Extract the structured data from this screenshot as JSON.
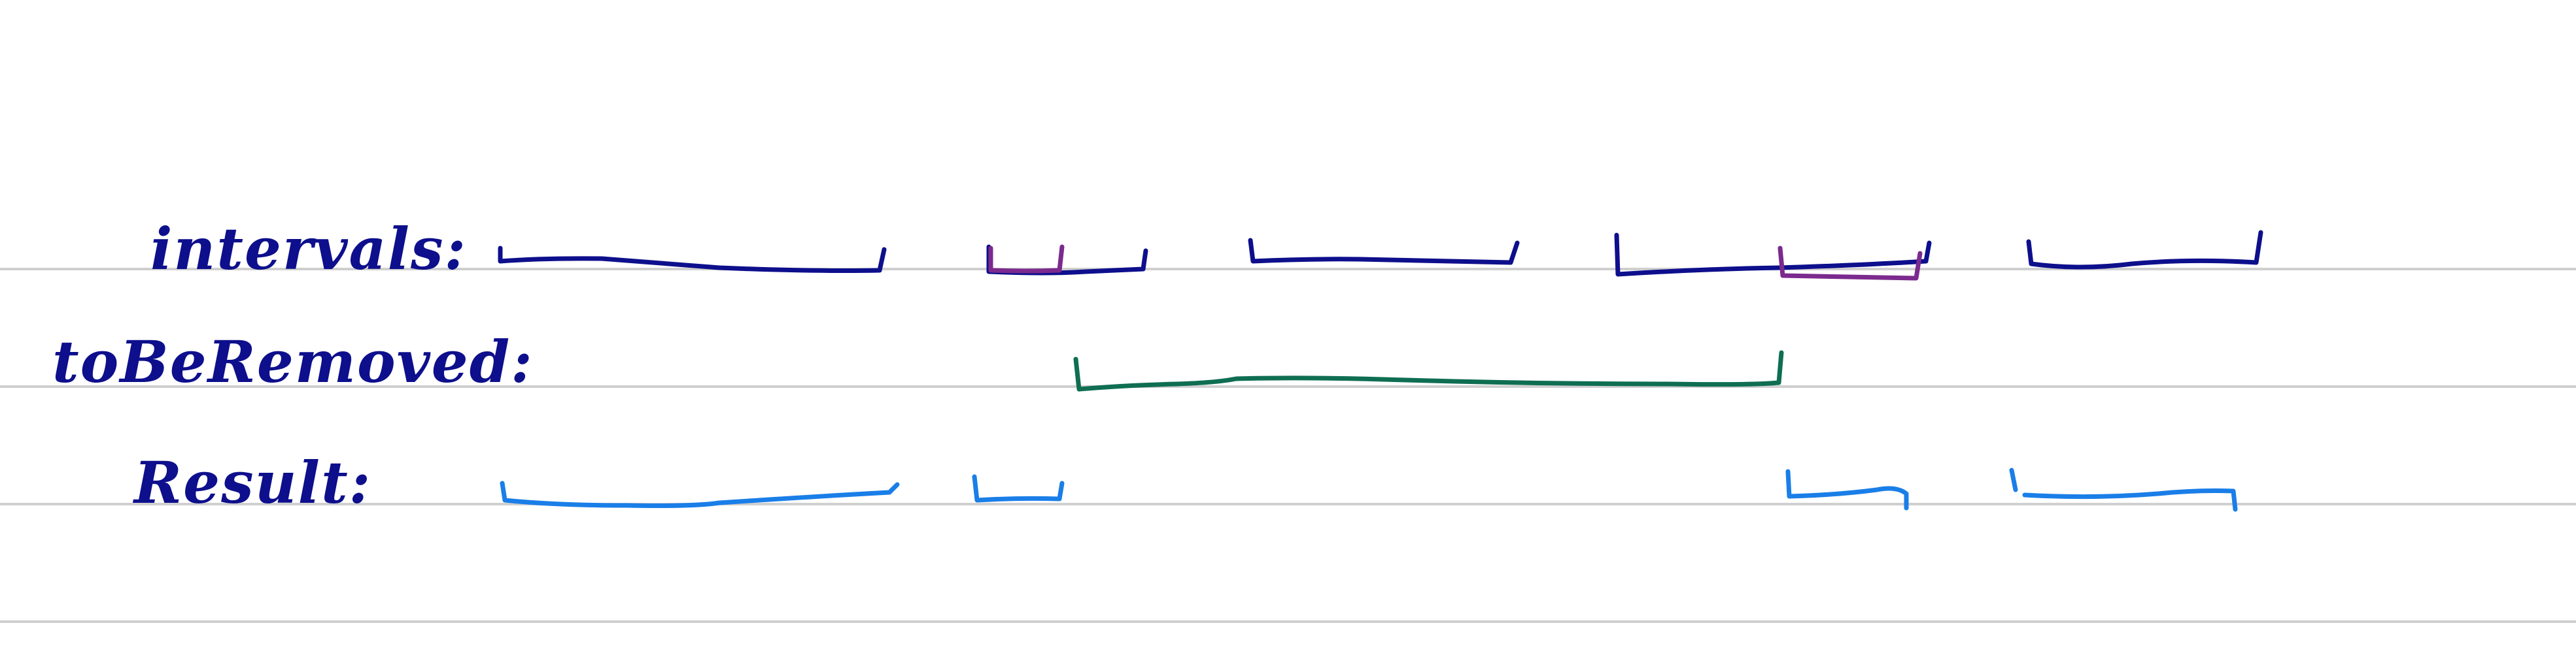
{
  "rows": [
    {
      "label": "intervals:",
      "segments": [
        {
          "role": "interval",
          "color": "#0d0f8c"
        },
        {
          "role": "interval",
          "color": "#0d0f8c"
        },
        {
          "role": "interval",
          "color": "#0d0f8c"
        },
        {
          "role": "interval",
          "color": "#0d0f8c"
        },
        {
          "role": "interval",
          "color": "#0d0f8c"
        },
        {
          "role": "overlap-highlight",
          "color": "#7b2a8e"
        },
        {
          "role": "overlap-highlight",
          "color": "#7b2a8e"
        }
      ]
    },
    {
      "label": "toBeRemoved:",
      "segments": [
        {
          "role": "removal-range",
          "color": "#0f6e52"
        }
      ]
    },
    {
      "label": "Result:",
      "segments": [
        {
          "role": "result",
          "color": "#1a7ee8"
        },
        {
          "role": "result",
          "color": "#1a7ee8"
        },
        {
          "role": "result",
          "color": "#1a7ee8"
        },
        {
          "role": "result",
          "color": "#1a7ee8"
        }
      ]
    }
  ],
  "colors": {
    "ruled_line": "#cfcfcf",
    "label_ink": "#0d0f8c",
    "interval_ink": "#0d0f8c",
    "overlap_ink": "#7b2a8e",
    "removal_ink": "#0f6e52",
    "result_ink": "#1a7ee8"
  }
}
